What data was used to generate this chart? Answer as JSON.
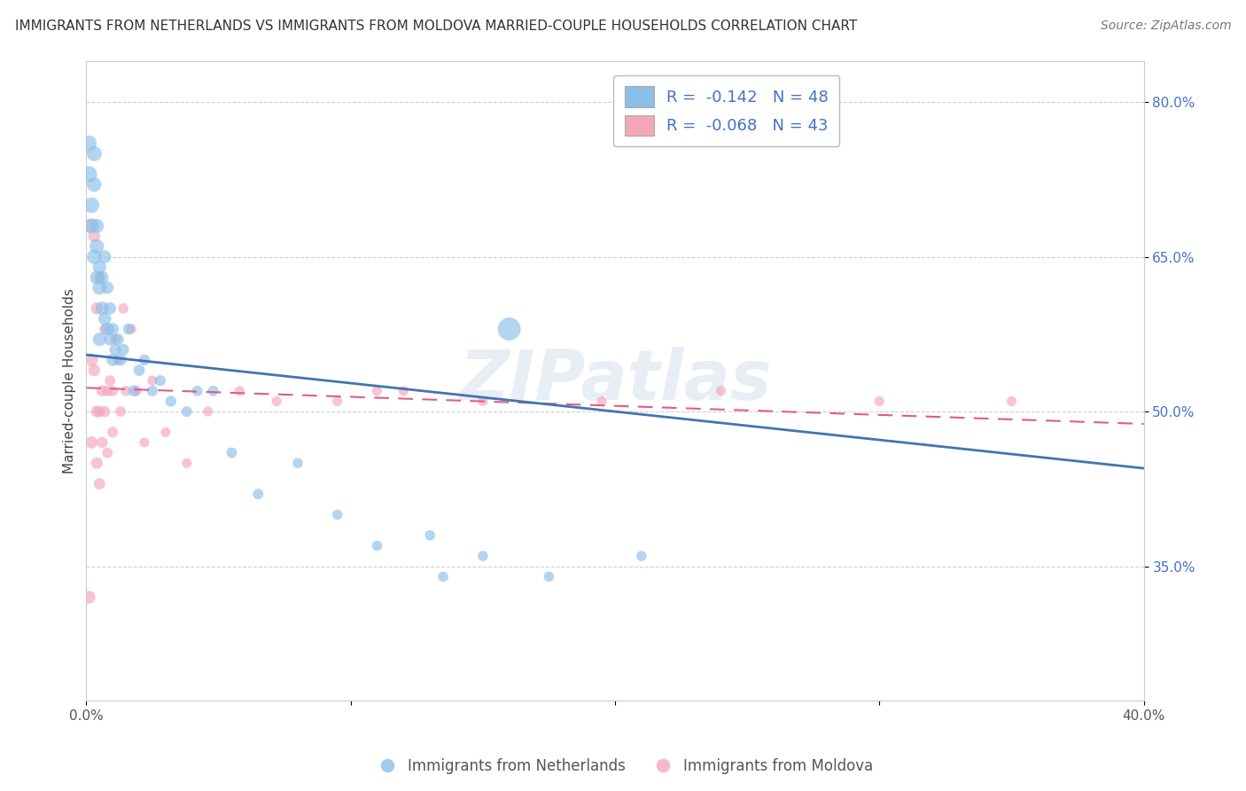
{
  "title": "IMMIGRANTS FROM NETHERLANDS VS IMMIGRANTS FROM MOLDOVA MARRIED-COUPLE HOUSEHOLDS CORRELATION CHART",
  "source": "Source: ZipAtlas.com",
  "xlabel_netherlands": "Immigrants from Netherlands",
  "xlabel_moldova": "Immigrants from Moldova",
  "ylabel": "Married-couple Households",
  "xlim": [
    0.0,
    0.4
  ],
  "ylim": [
    0.22,
    0.84
  ],
  "xticks": [
    0.0,
    0.1,
    0.2,
    0.3,
    0.4
  ],
  "xtick_labels": [
    "0.0%",
    "",
    "",
    "",
    "40.0%"
  ],
  "yticks": [
    0.35,
    0.5,
    0.65,
    0.8
  ],
  "ytick_labels": [
    "35.0%",
    "50.0%",
    "65.0%",
    "80.0%"
  ],
  "r_netherlands": -0.142,
  "n_netherlands": 48,
  "r_moldova": -0.068,
  "n_moldova": 43,
  "blue_color": "#8bbfe8",
  "pink_color": "#f4a7bb",
  "blue_line_color": "#4374b3",
  "pink_line_color": "#e05c8a",
  "text_color": "#4472c4",
  "background_color": "#ffffff",
  "grid_color": "#cccccc",
  "watermark": "ZIPatlas",
  "netherlands_x": [
    0.001,
    0.001,
    0.002,
    0.002,
    0.003,
    0.003,
    0.003,
    0.004,
    0.004,
    0.004,
    0.005,
    0.005,
    0.005,
    0.006,
    0.006,
    0.007,
    0.007,
    0.008,
    0.008,
    0.009,
    0.009,
    0.01,
    0.01,
    0.011,
    0.012,
    0.013,
    0.014,
    0.016,
    0.018,
    0.02,
    0.022,
    0.025,
    0.028,
    0.032,
    0.038,
    0.042,
    0.048,
    0.055,
    0.065,
    0.08,
    0.095,
    0.11,
    0.13,
    0.15,
    0.175,
    0.21,
    0.16,
    0.135
  ],
  "netherlands_y": [
    0.73,
    0.76,
    0.7,
    0.68,
    0.75,
    0.72,
    0.65,
    0.66,
    0.68,
    0.63,
    0.62,
    0.64,
    0.57,
    0.6,
    0.63,
    0.59,
    0.65,
    0.58,
    0.62,
    0.57,
    0.6,
    0.55,
    0.58,
    0.56,
    0.57,
    0.55,
    0.56,
    0.58,
    0.52,
    0.54,
    0.55,
    0.52,
    0.53,
    0.51,
    0.5,
    0.52,
    0.52,
    0.46,
    0.42,
    0.45,
    0.4,
    0.37,
    0.38,
    0.36,
    0.34,
    0.36,
    0.58,
    0.34
  ],
  "netherlands_sizes": [
    180,
    160,
    160,
    150,
    150,
    140,
    140,
    140,
    130,
    130,
    130,
    120,
    120,
    120,
    110,
    110,
    110,
    110,
    100,
    100,
    100,
    100,
    100,
    90,
    90,
    90,
    90,
    85,
    85,
    85,
    80,
    80,
    80,
    80,
    75,
    75,
    75,
    75,
    75,
    70,
    70,
    70,
    70,
    70,
    70,
    70,
    350,
    70
  ],
  "moldova_x": [
    0.001,
    0.001,
    0.002,
    0.002,
    0.003,
    0.003,
    0.004,
    0.004,
    0.004,
    0.005,
    0.005,
    0.005,
    0.006,
    0.006,
    0.007,
    0.007,
    0.008,
    0.008,
    0.009,
    0.01,
    0.01,
    0.011,
    0.012,
    0.013,
    0.014,
    0.015,
    0.017,
    0.019,
    0.022,
    0.025,
    0.03,
    0.038,
    0.046,
    0.058,
    0.072,
    0.095,
    0.12,
    0.15,
    0.195,
    0.24,
    0.3,
    0.35,
    0.11
  ],
  "moldova_y": [
    0.68,
    0.32,
    0.55,
    0.47,
    0.67,
    0.54,
    0.6,
    0.5,
    0.45,
    0.63,
    0.5,
    0.43,
    0.52,
    0.47,
    0.58,
    0.5,
    0.52,
    0.46,
    0.53,
    0.52,
    0.48,
    0.57,
    0.55,
    0.5,
    0.6,
    0.52,
    0.58,
    0.52,
    0.47,
    0.53,
    0.48,
    0.45,
    0.5,
    0.52,
    0.51,
    0.51,
    0.52,
    0.51,
    0.51,
    0.52,
    0.51,
    0.51,
    0.52
  ],
  "moldova_sizes": [
    120,
    110,
    110,
    100,
    100,
    95,
    95,
    90,
    90,
    90,
    85,
    85,
    85,
    80,
    80,
    80,
    80,
    75,
    75,
    75,
    75,
    75,
    70,
    70,
    70,
    70,
    70,
    70,
    65,
    65,
    65,
    65,
    65,
    65,
    65,
    65,
    65,
    65,
    65,
    65,
    65,
    65,
    65
  ],
  "nl_line_x0": 0.0,
  "nl_line_y0": 0.555,
  "nl_line_x1": 0.4,
  "nl_line_y1": 0.445,
  "md_line_x0": 0.0,
  "md_line_y0": 0.523,
  "md_line_x1": 0.4,
  "md_line_y1": 0.488
}
